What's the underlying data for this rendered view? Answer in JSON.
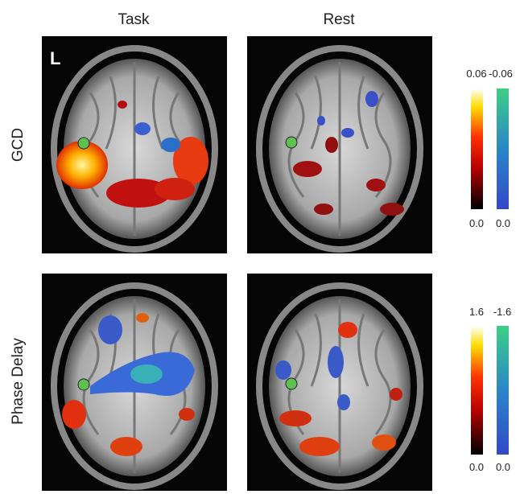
{
  "column_labels": [
    "Task",
    "Rest"
  ],
  "row_labels": [
    "GCD",
    "Phase Delay"
  ],
  "hemisphere_label": "L",
  "colorbars": [
    {
      "positive_max": "0.06",
      "negative_max": "-0.06",
      "positive_min": "0.0",
      "negative_min": "0.0"
    },
    {
      "positive_max": "1.6",
      "negative_max": "-1.6",
      "positive_min": "0.0",
      "negative_min": "0.0"
    }
  ]
}
